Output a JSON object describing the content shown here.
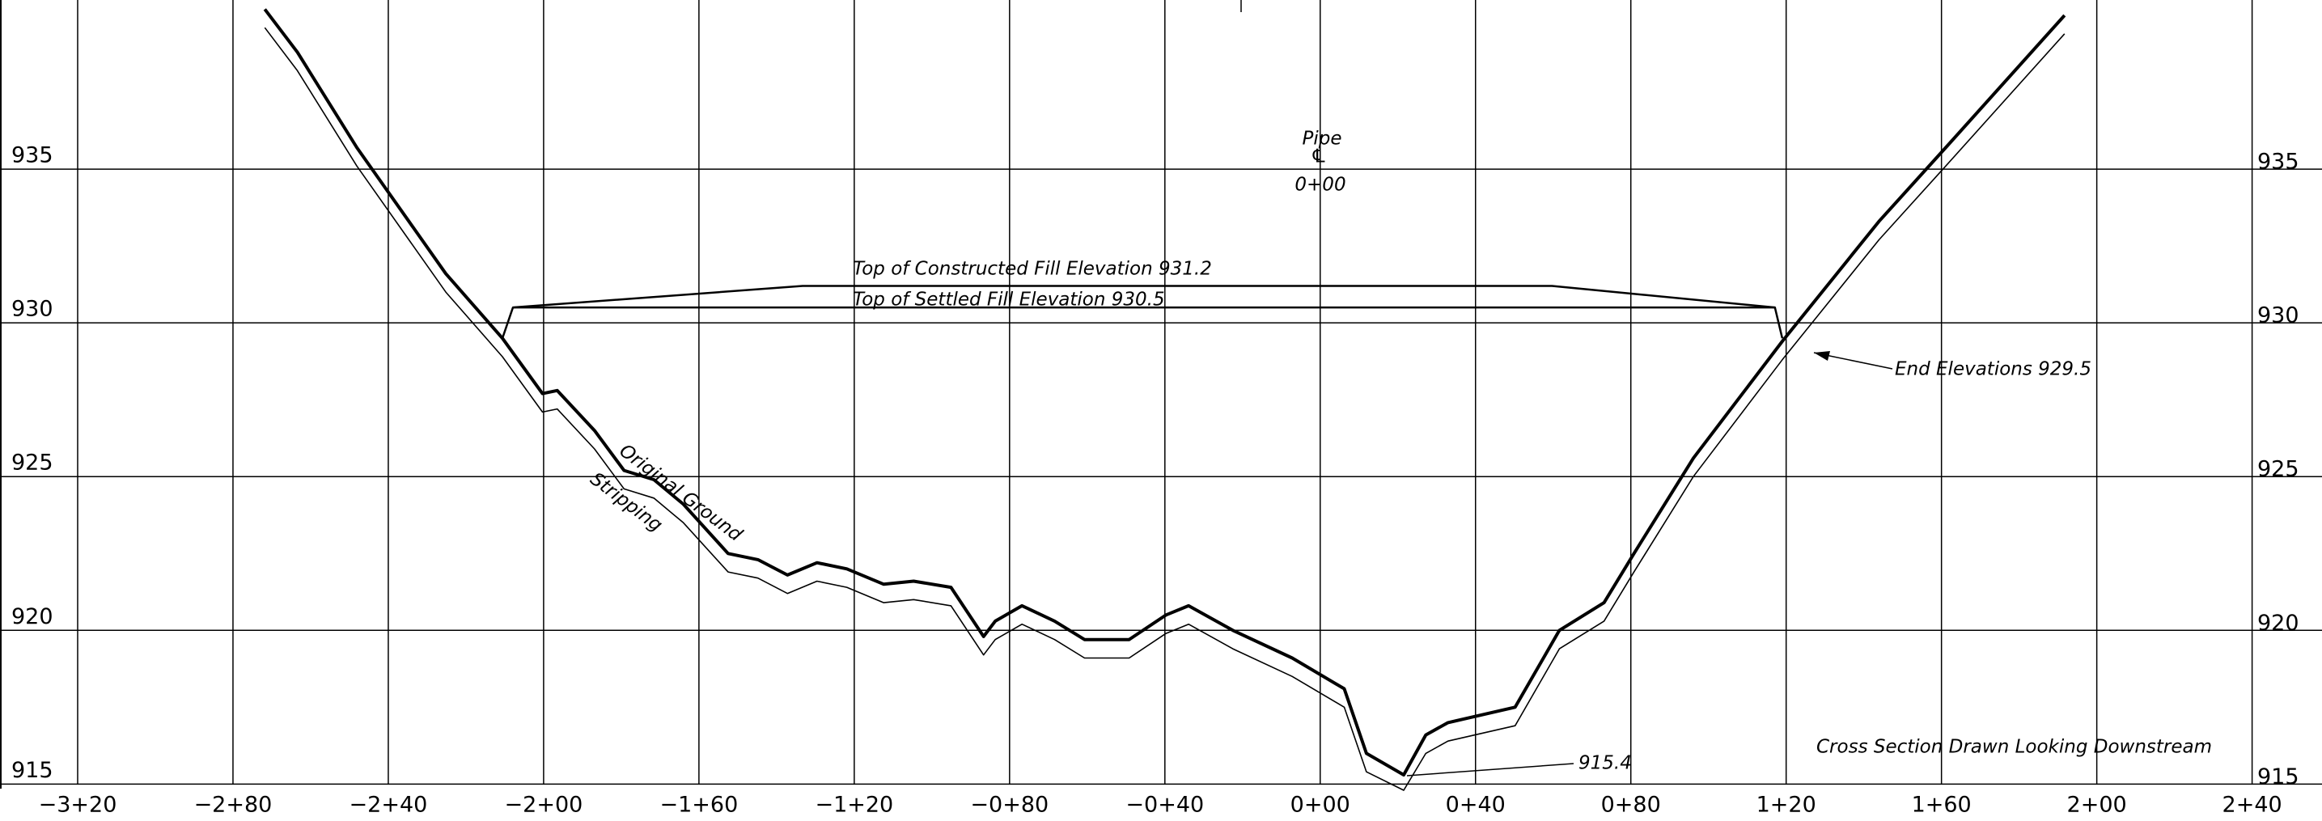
{
  "chart_data": {
    "type": "cross-section",
    "xlim": [
      -340,
      258
    ],
    "ylim": [
      913.8,
      940.5
    ],
    "xticks": [
      {
        "value": -320,
        "label": "−3+20"
      },
      {
        "value": -280,
        "label": "−2+80"
      },
      {
        "value": -240,
        "label": "−2+40"
      },
      {
        "value": -200,
        "label": "−2+00"
      },
      {
        "value": -160,
        "label": "−1+60"
      },
      {
        "value": -120,
        "label": "−1+20"
      },
      {
        "value": -80,
        "label": "−0+80"
      },
      {
        "value": -40,
        "label": "−0+40"
      },
      {
        "value": 0,
        "label": "0+00"
      },
      {
        "value": 40,
        "label": "0+40"
      },
      {
        "value": 80,
        "label": "0+80"
      },
      {
        "value": 120,
        "label": "1+20"
      },
      {
        "value": 160,
        "label": "1+60"
      },
      {
        "value": 200,
        "label": "2+00"
      },
      {
        "value": 240,
        "label": "2+40"
      }
    ],
    "yticks": [
      915,
      920,
      925,
      930,
      935
    ],
    "grid": true,
    "series": [
      {
        "name": "Original Ground",
        "color": "#000000",
        "x": [
          -271.8,
          -263.4,
          -248.1,
          -225.2,
          -210.6,
          -200.3,
          -196.5,
          -186.9,
          -179.3,
          -171.6,
          -164.0,
          -152.5,
          -144.8,
          -137.2,
          -129.6,
          -121.9,
          -112.4,
          -104.7,
          -95.1,
          -86.7,
          -83.7,
          -76.8,
          -68.4,
          -60.7,
          -49.2,
          -39.7,
          -33.9,
          -22.5,
          -7.2,
          6.2,
          11.9,
          21.5,
          27.2,
          32.9,
          50.2,
          61.6,
          73.1,
          80.8,
          96.1,
          119.0,
          143.9,
          161.1,
          191.7
        ],
        "values": [
          940.2,
          938.8,
          935.7,
          931.6,
          929.5,
          927.7,
          927.8,
          926.5,
          925.2,
          924.9,
          924.1,
          922.5,
          922.3,
          921.8,
          922.2,
          922.0,
          921.5,
          921.6,
          921.4,
          919.8,
          920.3,
          920.8,
          920.3,
          919.7,
          919.7,
          920.5,
          920.8,
          920.0,
          919.1,
          918.1,
          916.0,
          915.3,
          916.6,
          917.0,
          917.5,
          920.0,
          920.9,
          922.5,
          925.6,
          929.4,
          933.3,
          935.7,
          940.0
        ]
      },
      {
        "name": "Stripping",
        "color": "#000000",
        "x": [
          -271.8,
          -263.4,
          -248.1,
          -225.2,
          -210.6,
          -200.3,
          -196.5,
          -186.9,
          -179.3,
          -171.6,
          -164.0,
          -152.5,
          -144.8,
          -137.2,
          -129.6,
          -121.9,
          -112.4,
          -104.7,
          -95.1,
          -86.7,
          -83.7,
          -76.8,
          -68.4,
          -60.7,
          -49.2,
          -39.7,
          -33.9,
          -22.5,
          -7.2,
          6.2,
          11.9,
          21.5,
          27.2,
          32.9,
          50.2,
          61.6,
          73.1,
          80.8,
          96.1,
          119.0,
          143.9,
          161.1,
          191.7
        ],
        "values": [
          939.6,
          938.2,
          935.1,
          931.0,
          928.9,
          927.1,
          927.2,
          925.9,
          924.6,
          924.3,
          923.5,
          921.9,
          921.7,
          921.2,
          921.6,
          921.4,
          920.9,
          921.0,
          920.8,
          919.2,
          919.7,
          920.2,
          919.7,
          919.1,
          919.1,
          919.9,
          920.2,
          919.4,
          918.5,
          917.5,
          915.4,
          914.8,
          916.0,
          916.4,
          916.9,
          919.4,
          920.3,
          921.9,
          925.0,
          928.8,
          932.7,
          935.1,
          939.4
        ]
      }
    ],
    "fill_lines": [
      {
        "name": "Top of Constructed Fill Elevation 931.2",
        "color": "#000000",
        "x": [
          -210.6,
          -207.9,
          -133.3,
          59.7,
          117.1,
          119.0
        ],
        "values": [
          929.5,
          930.5,
          931.2,
          931.2,
          930.5,
          929.5
        ]
      },
      {
        "name": "Top of Settled Fill Elevation 930.5",
        "color": "#000000",
        "x": [
          -207.9,
          117.1
        ],
        "values": [
          930.5,
          930.5
        ]
      }
    ],
    "annotations": [
      "Pipe",
      "℄",
      "0+00",
      "End Elevations 929.5",
      "915.4",
      "Cross Section Drawn Looking Downstream"
    ]
  }
}
